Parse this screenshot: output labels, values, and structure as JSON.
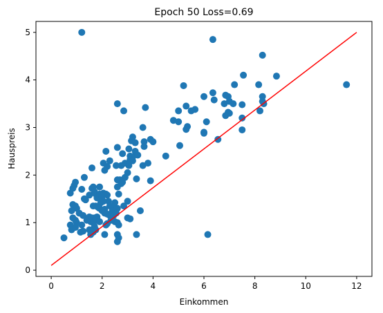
{
  "chart_data": {
    "type": "scatter",
    "title": "Epoch 50 Loss=0.69",
    "xlabel": "Einkommen",
    "ylabel": "Hauspreis",
    "xlim": [
      -0.6,
      12.6
    ],
    "ylim": [
      -0.13,
      5.23
    ],
    "xticks": [
      0,
      2,
      4,
      6,
      8,
      10,
      12
    ],
    "yticks": [
      0,
      1,
      2,
      3,
      4,
      5
    ],
    "grid": false,
    "colors": {
      "points": "#1f77b4",
      "line": "#ff0000"
    },
    "series": [
      {
        "type": "scatter",
        "points": [
          [
            1.2,
            5.0
          ],
          [
            6.35,
            4.85
          ],
          [
            8.3,
            4.52
          ],
          [
            7.55,
            4.1
          ],
          [
            8.85,
            4.08
          ],
          [
            11.6,
            3.9
          ],
          [
            5.2,
            3.88
          ],
          [
            7.2,
            3.9
          ],
          [
            8.15,
            3.9
          ],
          [
            6.35,
            3.73
          ],
          [
            6.0,
            3.65
          ],
          [
            8.3,
            3.65
          ],
          [
            6.85,
            3.68
          ],
          [
            6.95,
            3.65
          ],
          [
            8.3,
            3.55
          ],
          [
            8.35,
            3.5
          ],
          [
            2.6,
            3.5
          ],
          [
            3.7,
            3.42
          ],
          [
            6.4,
            3.58
          ],
          [
            5.3,
            3.45
          ],
          [
            5.65,
            3.38
          ],
          [
            5.5,
            3.35
          ],
          [
            6.8,
            3.5
          ],
          [
            7.0,
            3.55
          ],
          [
            7.15,
            3.5
          ],
          [
            7.5,
            3.48
          ],
          [
            2.85,
            3.35
          ],
          [
            5.0,
            3.35
          ],
          [
            6.1,
            3.12
          ],
          [
            6.95,
            3.32
          ],
          [
            7.0,
            3.3
          ],
          [
            6.85,
            3.25
          ],
          [
            8.2,
            3.35
          ],
          [
            7.5,
            3.2
          ],
          [
            4.8,
            3.15
          ],
          [
            5.0,
            3.12
          ],
          [
            5.35,
            3.02
          ],
          [
            5.3,
            2.96
          ],
          [
            6.0,
            2.9
          ],
          [
            6.0,
            2.88
          ],
          [
            7.5,
            2.95
          ],
          [
            3.6,
            3.0
          ],
          [
            3.2,
            2.8
          ],
          [
            3.15,
            2.72
          ],
          [
            3.3,
            2.68
          ],
          [
            3.9,
            2.75
          ],
          [
            4.0,
            2.7
          ],
          [
            3.65,
            2.7
          ],
          [
            3.05,
            2.55
          ],
          [
            3.65,
            2.6
          ],
          [
            2.6,
            2.58
          ],
          [
            3.3,
            2.5
          ],
          [
            3.1,
            2.4
          ],
          [
            2.8,
            2.45
          ],
          [
            3.2,
            2.38
          ],
          [
            3.4,
            2.42
          ],
          [
            2.15,
            2.5
          ],
          [
            2.3,
            2.3
          ],
          [
            3.1,
            2.32
          ],
          [
            3.2,
            2.3
          ],
          [
            2.9,
            2.25
          ],
          [
            3.05,
            2.2
          ],
          [
            2.55,
            2.2
          ],
          [
            2.75,
            2.2
          ],
          [
            2.05,
            2.25
          ],
          [
            2.2,
            2.18
          ],
          [
            3.6,
            2.2
          ],
          [
            3.8,
            2.25
          ],
          [
            4.5,
            2.4
          ],
          [
            5.05,
            2.62
          ],
          [
            6.55,
            2.75
          ],
          [
            1.6,
            2.15
          ],
          [
            2.1,
            2.1
          ],
          [
            3.0,
            2.05
          ],
          [
            3.35,
            1.92
          ],
          [
            2.9,
            1.95
          ],
          [
            2.7,
            1.9
          ],
          [
            2.6,
            1.9
          ],
          [
            2.75,
            1.82
          ],
          [
            3.9,
            1.88
          ],
          [
            2.6,
            1.75
          ],
          [
            2.8,
            1.85
          ],
          [
            1.3,
            1.95
          ],
          [
            1.65,
            1.75
          ],
          [
            1.6,
            1.72
          ],
          [
            0.95,
            1.85
          ],
          [
            0.9,
            1.78
          ],
          [
            0.85,
            1.72
          ],
          [
            0.75,
            1.62
          ],
          [
            1.2,
            1.7
          ],
          [
            1.7,
            1.65
          ],
          [
            1.9,
            1.75
          ],
          [
            1.75,
            1.6
          ],
          [
            1.5,
            1.58
          ],
          [
            2.05,
            1.62
          ],
          [
            2.2,
            1.58
          ],
          [
            2.15,
            1.6
          ],
          [
            1.8,
            1.52
          ],
          [
            1.9,
            1.6
          ],
          [
            2.0,
            1.55
          ],
          [
            1.3,
            1.5
          ],
          [
            1.35,
            1.48
          ],
          [
            2.65,
            1.6
          ],
          [
            2.25,
            1.45
          ],
          [
            2.5,
            1.42
          ],
          [
            2.05,
            1.45
          ],
          [
            1.95,
            1.42
          ],
          [
            1.65,
            1.35
          ],
          [
            1.75,
            1.35
          ],
          [
            1.85,
            1.32
          ],
          [
            1.9,
            1.3
          ],
          [
            2.3,
            1.35
          ],
          [
            2.6,
            1.3
          ],
          [
            2.45,
            1.3
          ],
          [
            2.1,
            1.28
          ],
          [
            2.0,
            1.25
          ],
          [
            2.4,
            1.25
          ],
          [
            2.55,
            1.2
          ],
          [
            2.1,
            1.2
          ],
          [
            2.2,
            1.18
          ],
          [
            2.3,
            1.15
          ],
          [
            2.45,
            1.15
          ],
          [
            2.85,
            1.35
          ],
          [
            3.0,
            1.45
          ],
          [
            0.85,
            1.38
          ],
          [
            0.95,
            1.35
          ],
          [
            1.0,
            1.3
          ],
          [
            0.8,
            1.25
          ],
          [
            1.1,
            1.2
          ],
          [
            1.25,
            1.15
          ],
          [
            1.5,
            1.12
          ],
          [
            1.6,
            1.1
          ],
          [
            1.7,
            1.1
          ],
          [
            1.8,
            1.12
          ],
          [
            1.4,
            1.05
          ],
          [
            1.55,
            1.02
          ],
          [
            1.65,
            1.0
          ],
          [
            1.8,
            1.05
          ],
          [
            1.9,
            1.02
          ],
          [
            1.2,
            0.95
          ],
          [
            1.0,
            1.0
          ],
          [
            0.95,
            1.05
          ],
          [
            0.85,
            1.1
          ],
          [
            2.35,
            1.05
          ],
          [
            2.5,
            1.02
          ],
          [
            2.6,
            1.0
          ],
          [
            2.65,
            0.95
          ],
          [
            2.2,
            0.98
          ],
          [
            2.15,
            0.95
          ],
          [
            1.7,
            0.92
          ],
          [
            1.75,
            0.85
          ],
          [
            1.65,
            0.8
          ],
          [
            1.5,
            0.85
          ],
          [
            0.75,
            0.95
          ],
          [
            0.8,
            0.85
          ],
          [
            0.95,
            0.9
          ],
          [
            1.15,
            0.8
          ],
          [
            1.25,
            0.82
          ],
          [
            1.6,
            0.82
          ],
          [
            1.55,
            0.75
          ],
          [
            2.1,
            0.75
          ],
          [
            2.6,
            0.75
          ],
          [
            2.65,
            0.68
          ],
          [
            2.6,
            0.6
          ],
          [
            0.5,
            0.68
          ],
          [
            3.0,
            1.1
          ],
          [
            3.1,
            1.08
          ],
          [
            3.5,
            1.25
          ],
          [
            3.35,
            0.75
          ],
          [
            6.15,
            0.75
          ]
        ]
      },
      {
        "type": "line",
        "points": [
          [
            0.0,
            0.1
          ],
          [
            12.0,
            5.0
          ]
        ]
      }
    ]
  }
}
